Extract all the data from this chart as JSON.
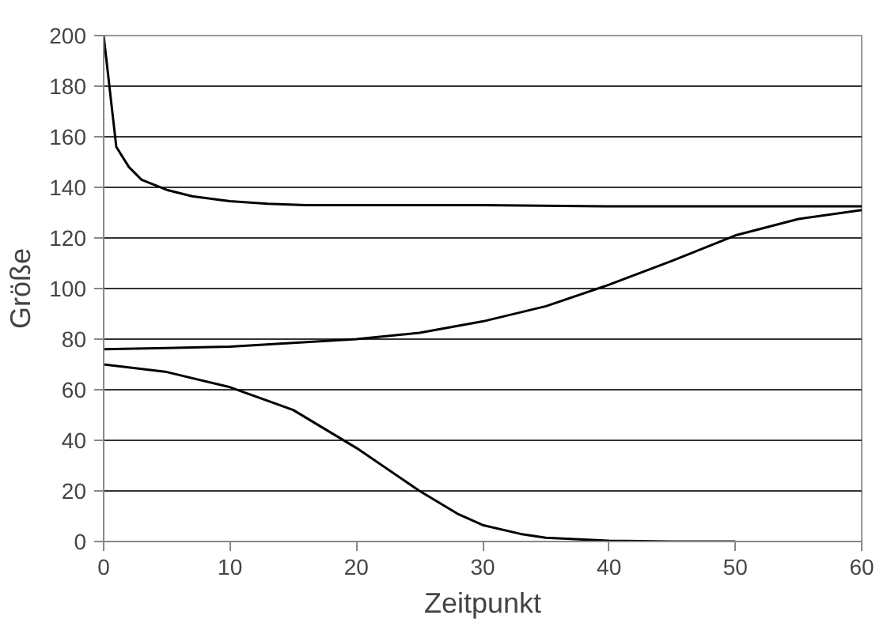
{
  "chart_data": {
    "type": "line",
    "xlabel": "Zeitpunkt",
    "ylabel": "Größe",
    "xlim": [
      0,
      60
    ],
    "xticks": [
      0,
      10,
      20,
      30,
      40,
      50,
      60
    ],
    "ylim": [
      0,
      200
    ],
    "yticks": [
      0,
      20,
      40,
      60,
      80,
      100,
      120,
      140,
      160,
      180,
      200
    ],
    "grid": "y",
    "marker": "none",
    "line_style": "solid",
    "series": [
      {
        "color": "#000000",
        "x": [
          0,
          1,
          2,
          3,
          5,
          7,
          10,
          13,
          16,
          20,
          30,
          40,
          50,
          60
        ],
        "values": [
          200,
          156,
          148,
          143,
          139,
          136.5,
          134.5,
          133.5,
          133,
          133,
          133,
          132.5,
          132.5,
          132.5
        ]
      },
      {
        "color": "#000000",
        "x": [
          0,
          5,
          10,
          15,
          20,
          25,
          30,
          35,
          40,
          45,
          50,
          55,
          60
        ],
        "values": [
          76,
          76.5,
          77,
          78.5,
          80,
          82.5,
          87,
          93,
          101.5,
          111,
          121,
          127.5,
          131
        ]
      },
      {
        "color": "#000000",
        "x": [
          0,
          5,
          10,
          15,
          20,
          25,
          28,
          30,
          33,
          35,
          40,
          45,
          50
        ],
        "values": [
          70,
          67,
          61,
          52,
          37,
          20,
          11,
          6.5,
          3,
          1.5,
          0.3,
          0,
          0
        ]
      }
    ]
  }
}
